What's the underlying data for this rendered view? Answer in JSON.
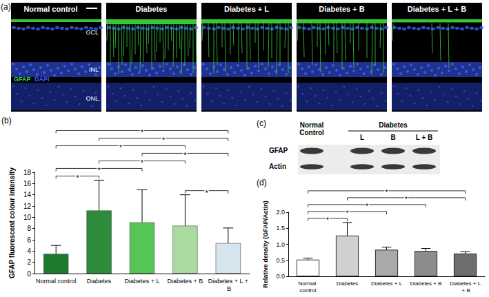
{
  "panel_a": {
    "label": "(a)",
    "images": [
      {
        "title": "Normal control"
      },
      {
        "title": "Diabetes"
      },
      {
        "title": "Diabetes + L"
      },
      {
        "title": "Diabetes + B"
      },
      {
        "title": "Diabetes + L + B"
      }
    ],
    "layers": [
      "GCL",
      "INL",
      "ONL"
    ],
    "stains": [
      {
        "name": "GFAP",
        "color": "#3ddc3d"
      },
      {
        "name": "DAPI",
        "color": "#3a5cff"
      }
    ]
  },
  "panel_c": {
    "label": "(c)",
    "group": "Diabetes",
    "columns": [
      "Normal Control",
      "L",
      "B",
      "L + B"
    ],
    "rows": [
      "GFAP",
      "Actin"
    ]
  },
  "chart_data": [
    {
      "type": "bar",
      "panel_label": "(b)",
      "ylabel": "GFAP fluorescent colour intensity",
      "categories": [
        "Normal control",
        "Diabetes",
        "Diabetes + L",
        "Diabetes + B",
        "Diabetes + L + B"
      ],
      "values": [
        3.5,
        11.2,
        9.1,
        8.5,
        5.4
      ],
      "errors": [
        1.5,
        5.4,
        5.8,
        5.5,
        2.7
      ],
      "colors": [
        "#1e7b2e",
        "#2e8b3c",
        "#55c655",
        "#a9dba0",
        "#d6e4ee"
      ],
      "ylim": [
        0,
        18
      ],
      "yticks": [
        0,
        2,
        4,
        6,
        8,
        10,
        12,
        14,
        16,
        18
      ],
      "grid": false,
      "significance": [
        {
          "from": "Normal control",
          "to": "Diabetes",
          "label": "*"
        },
        {
          "from": "Normal control",
          "to": "Diabetes + L",
          "label": "*"
        },
        {
          "from": "Normal control",
          "to": "Diabetes + B",
          "label": "*"
        },
        {
          "from": "Normal control",
          "to": "Diabetes + L + B",
          "label": "*"
        },
        {
          "from": "Diabetes",
          "to": "Diabetes + B",
          "label": "*"
        },
        {
          "from": "Diabetes",
          "to": "Diabetes + L + B",
          "label": "*"
        },
        {
          "from": "Diabetes + L",
          "to": "Diabetes + L + B",
          "label": "*"
        },
        {
          "from": "Diabetes + B",
          "to": "Diabetes + L + B",
          "label": "*"
        }
      ]
    },
    {
      "type": "bar",
      "panel_label": "(d)",
      "ylabel": "Relative density (GFAP/Actin)",
      "categories": [
        "Normal control",
        "Diabetes",
        "Diabetes + L",
        "Diabetes + B",
        "Diabetes + L + B"
      ],
      "values": [
        0.52,
        1.27,
        0.83,
        0.79,
        0.71
      ],
      "errors": [
        0.05,
        0.41,
        0.08,
        0.08,
        0.06
      ],
      "colors": [
        "#ffffff",
        "#d0d0d0",
        "#a9a9a9",
        "#8c8c8c",
        "#6e6e6e"
      ],
      "ylim": [
        0,
        2
      ],
      "yticks": [
        {
          "value": 0,
          "label": "0.0"
        },
        0.5,
        {
          "value": 1,
          "label": "1.0"
        },
        1.5,
        {
          "value": 2,
          "label": "2.0"
        }
      ],
      "grid": false,
      "significance": [
        {
          "from": "Normal control",
          "to": "Diabetes",
          "label": "*"
        },
        {
          "from": "Normal control",
          "to": "Diabetes + L",
          "label": "*"
        },
        {
          "from": "Normal control",
          "to": "Diabetes + B",
          "label": "*"
        },
        {
          "from": "Normal control",
          "to": "Diabetes + L + B",
          "label": "*"
        },
        {
          "from": "Diabetes",
          "to": "Diabetes + L + B",
          "label": "*"
        }
      ]
    }
  ]
}
